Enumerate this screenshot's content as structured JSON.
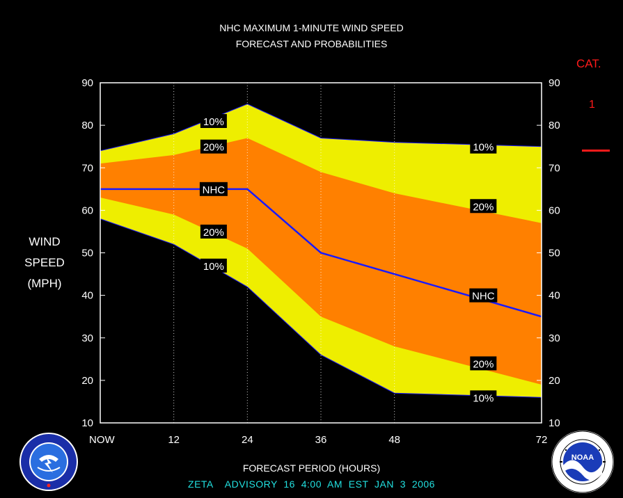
{
  "title_line1": "NHC MAXIMUM 1-MINUTE WIND SPEED",
  "title_line2": "FORECAST AND PROBABILITIES",
  "ylabel_lines": [
    "WIND",
    "SPEED",
    "(MPH)"
  ],
  "xlabel": "FORECAST PERIOD (HOURS)",
  "advisory": "ZETA    ADVISORY  16  4:00  AM  EST  JAN  3  2006",
  "category": {
    "label": "CAT.",
    "value": "1",
    "color": "#ff1a1a"
  },
  "logos": {
    "left": "NATIONAL WEATHER SERVICE",
    "right_center": "NOAA",
    "right_ring": "NATIONAL OCEANIC AND ATMOSPHERIC ADMINISTRATION · U.S. DEPARTMENT OF COMMERCE"
  },
  "colors": {
    "outer_band": "#eeee00",
    "inner_band": "#ff8000",
    "nhc_line": "#1a1aff",
    "cat_line": "#ff1a1a"
  },
  "chart_data": {
    "type": "area",
    "title": "NHC MAXIMUM 1-MINUTE WIND SPEED FORECAST AND PROBABILITIES",
    "xlabel": "FORECAST PERIOD (HOURS)",
    "ylabel": "WIND SPEED (MPH)",
    "xlim": [
      0,
      72
    ],
    "ylim": [
      10,
      90
    ],
    "x_ticks": [
      0,
      12,
      24,
      36,
      48,
      72
    ],
    "x_tick_labels": [
      "NOW",
      "12",
      "24",
      "36",
      "48",
      "72"
    ],
    "y_ticks": [
      10,
      20,
      30,
      40,
      50,
      60,
      70,
      80,
      90
    ],
    "x": [
      0,
      12,
      24,
      36,
      48,
      72
    ],
    "series": [
      {
        "name": "10%",
        "values": [
          74,
          78,
          85,
          77,
          76,
          75
        ]
      },
      {
        "name": "20%",
        "values": [
          71,
          73,
          77,
          69,
          64,
          57
        ]
      },
      {
        "name": "NHC",
        "values": [
          65,
          65,
          65,
          50,
          45,
          35
        ]
      },
      {
        "name": "20%",
        "values": [
          63,
          59,
          51,
          35,
          28,
          19
        ]
      },
      {
        "name": "10%",
        "values": [
          58,
          52,
          42,
          26,
          17,
          16
        ]
      }
    ],
    "grid": "vertical dotted",
    "label_annotations": [
      {
        "text": "10%",
        "x": 16,
        "y": 81
      },
      {
        "text": "20%",
        "x": 16,
        "y": 75
      },
      {
        "text": "NHC",
        "x": 16,
        "y": 65
      },
      {
        "text": "20%",
        "x": 16,
        "y": 55
      },
      {
        "text": "10%",
        "x": 16,
        "y": 47
      },
      {
        "text": "10%",
        "x": 60,
        "y": 75
      },
      {
        "text": "20%",
        "x": 60,
        "y": 61
      },
      {
        "text": "NHC",
        "x": 60,
        "y": 40
      },
      {
        "text": "20%",
        "x": 60,
        "y": 24
      },
      {
        "text": "10%",
        "x": 60,
        "y": 16
      }
    ]
  }
}
